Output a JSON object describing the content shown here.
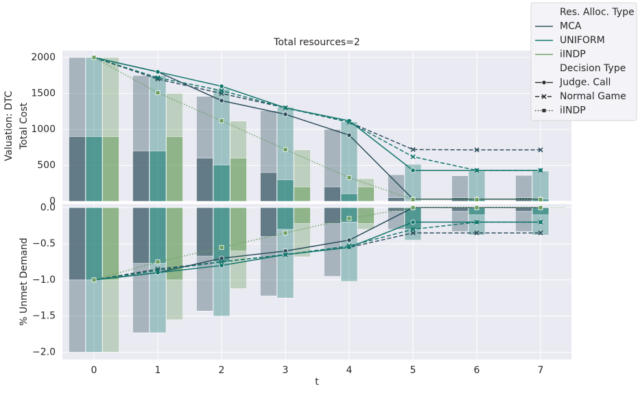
{
  "chart_data": {
    "type": "bar-line",
    "title": "Total resources=2",
    "xlabel": "t",
    "categories": [
      "0",
      "1",
      "2",
      "3",
      "4",
      "5",
      "6",
      "7"
    ],
    "grid": true,
    "legend": {
      "position": "upper right",
      "groups": [
        {
          "title": "Res. Alloc. Type",
          "items": [
            "MCA",
            "UNIFORM",
            "iINDP"
          ],
          "colors": [
            "#2b4d5b",
            "#12766c",
            "#6a9f5f"
          ]
        },
        {
          "title": "Decision Type",
          "items": [
            "Judge. Call",
            "Normal Game",
            "iINDP"
          ],
          "dashes": [
            "solid",
            "dashed",
            "dotted"
          ],
          "markers": [
            "circle",
            "x",
            "square"
          ]
        }
      ]
    },
    "panels": [
      {
        "ylabel": [
          "Valuation: DTC",
          "Total Cost"
        ],
        "ylim": [
          0,
          2095
        ],
        "yticks": [
          0,
          500,
          1000,
          1500,
          2000
        ],
        "bars": [
          {
            "color": "#2b4d5b",
            "outer": [
              2000,
              1750,
              1460,
              1260,
              1000,
              370,
              355,
              360
            ],
            "inner": [
              900,
              700,
              600,
              400,
              200,
              50,
              50,
              50
            ]
          },
          {
            "color": "#12766c",
            "outer": [
              2000,
              1750,
              1560,
              1310,
              1105,
              515,
              420,
              420
            ],
            "inner": [
              900,
              700,
              505,
              300,
              105,
              10,
              30,
              30
            ]
          },
          {
            "color": "#6a9f5f",
            "outer": [
              2000,
              1500,
              1115,
              715,
              315,
              10,
              5,
              5
            ],
            "inner": [
              900,
              900,
              600,
              200,
              200,
              5,
              5,
              5
            ]
          }
        ],
        "lines": [
          {
            "color": "#2b4d5b",
            "dash": "solid",
            "marker": "circle",
            "values": [
              2000,
              1800,
              1400,
              1210,
              920,
              30,
              30,
              30
            ]
          },
          {
            "color": "#2b4d5b",
            "dash": "dashed",
            "marker": "x",
            "values": [
              2000,
              1700,
              1500,
              1300,
              1100,
              720,
              715,
              715
            ]
          },
          {
            "color": "#12766c",
            "dash": "solid",
            "marker": "circle",
            "values": [
              2000,
              1800,
              1600,
              1300,
              1120,
              430,
              430,
              430
            ]
          },
          {
            "color": "#12766c",
            "dash": "dashed",
            "marker": "x",
            "values": [
              2000,
              1720,
              1540,
              1300,
              1100,
              620,
              430,
              430
            ]
          },
          {
            "color": "#6a9f5f",
            "dash": "dotted",
            "marker": "square",
            "values": [
              2000,
              1510,
              1120,
              720,
              330,
              25,
              25,
              25
            ]
          }
        ]
      },
      {
        "ylabel": [
          "% Unmet Demand"
        ],
        "ylim": [
          -2.1,
          0.05
        ],
        "yticks": [
          {
            "value": 0,
            "label": "0.0"
          },
          {
            "value": -0.5,
            "label": "−0.5"
          },
          {
            "value": -1,
            "label": "−1.0"
          },
          {
            "value": -1.5,
            "label": "−1.5"
          },
          {
            "value": -2,
            "label": "−2.0"
          }
        ],
        "bars": [
          {
            "color": "#2b4d5b",
            "outer": [
              -2,
              -1.73,
              -1.43,
              -1.22,
              -0.95,
              -0.3,
              -0.33,
              -0.33
            ],
            "inner": [
              -1,
              -0.77,
              -0.67,
              -0.4,
              -0.22,
              -0.05,
              -0.05,
              -0.05
            ]
          },
          {
            "color": "#12766c",
            "outer": [
              -2,
              -1.73,
              -1.5,
              -1.25,
              -1.02,
              -0.45,
              -0.38,
              -0.38
            ],
            "inner": [
              -1,
              -0.77,
              -0.75,
              -0.3,
              -0.2,
              -0.3,
              -0.1,
              -0.1
            ]
          },
          {
            "color": "#6a9f5f",
            "outer": [
              -2,
              -1.55,
              -1.12,
              -0.68,
              -0.3,
              -0.01,
              -0.01,
              -0.01
            ],
            "inner": [
              -1,
              -1,
              -0.6,
              -0.22,
              -0.22,
              -0.01,
              -0.01,
              -0.01
            ]
          }
        ],
        "lines": [
          {
            "color": "#2b4d5b",
            "dash": "solid",
            "marker": "circle",
            "values": [
              -1,
              -0.9,
              -0.7,
              -0.6,
              -0.45,
              0,
              0,
              0
            ]
          },
          {
            "color": "#2b4d5b",
            "dash": "dashed",
            "marker": "x",
            "values": [
              -1,
              -0.85,
              -0.75,
              -0.65,
              -0.55,
              -0.35,
              -0.35,
              -0.35
            ]
          },
          {
            "color": "#12766c",
            "dash": "solid",
            "marker": "circle",
            "values": [
              -1,
              -0.9,
              -0.8,
              -0.65,
              -0.55,
              -0.2,
              -0.2,
              -0.2
            ]
          },
          {
            "color": "#12766c",
            "dash": "dashed",
            "marker": "x",
            "values": [
              -1,
              -0.87,
              -0.75,
              -0.65,
              -0.53,
              -0.3,
              -0.2,
              -0.2
            ]
          },
          {
            "color": "#6a9f5f",
            "dash": "dotted",
            "marker": "square",
            "values": [
              -1,
              -0.75,
              -0.55,
              -0.35,
              -0.15,
              0,
              0,
              0
            ]
          }
        ]
      }
    ]
  }
}
